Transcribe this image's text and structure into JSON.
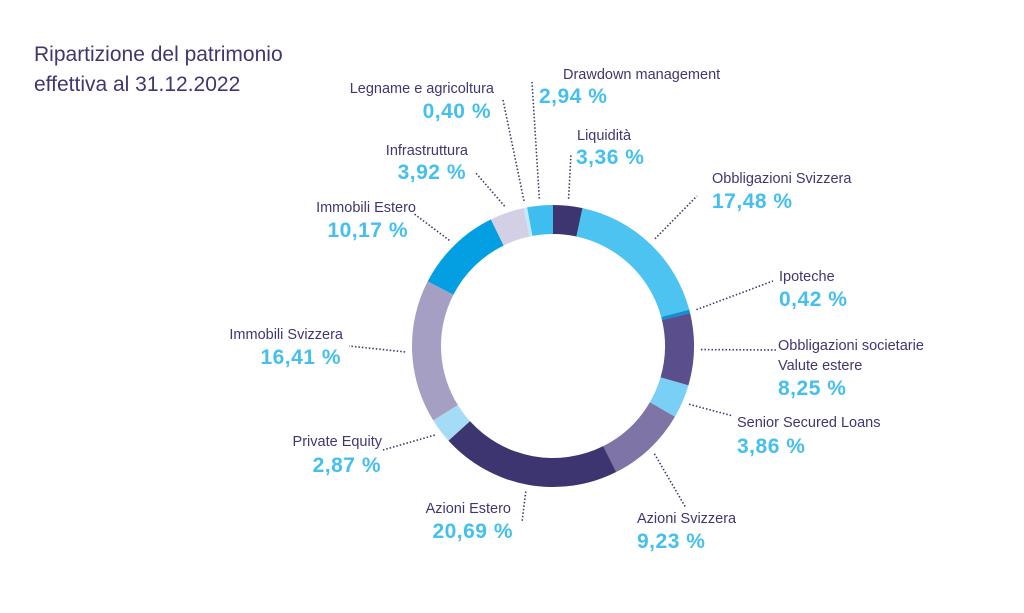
{
  "chart_data": {
    "type": "pie",
    "variant": "donut",
    "title": "Ripartizione del patrimonio effettiva al 31.12.2022",
    "title_lines": [
      "Ripartizione del patrimonio",
      "effettiva al 31.12.2022"
    ],
    "start": "top",
    "direction": "clockwise",
    "slices": [
      {
        "label": "Liquidità",
        "value": 3.36,
        "display": "3,36 %",
        "color": "#3d3570"
      },
      {
        "label": "Obbligazioni Svizzera",
        "value": 17.48,
        "display": "17,48 %",
        "color": "#4cc3f1"
      },
      {
        "label": "Ipoteche",
        "value": 0.42,
        "display": "0,42 %",
        "color": "#0d8fd6"
      },
      {
        "label": "Obbligazioni societarie Valute estere",
        "label_lines": [
          "Obbligazioni societarie",
          "Valute estere"
        ],
        "value": 8.25,
        "display": "8,25 %",
        "color": "#5a4f8c"
      },
      {
        "label": "Senior Secured Loans",
        "value": 3.86,
        "display": "3,86 %",
        "color": "#79cff4"
      },
      {
        "label": "Azioni Svizzera",
        "value": 9.23,
        "display": "9,23 %",
        "color": "#7e74a5"
      },
      {
        "label": "Azioni Estero",
        "value": 20.69,
        "display": "20,69 %",
        "color": "#3d3570"
      },
      {
        "label": "Private Equity",
        "value": 2.87,
        "display": "2,87 %",
        "color": "#a4dcf6"
      },
      {
        "label": "Immobili Svizzera",
        "value": 16.41,
        "display": "16,41 %",
        "color": "#a59fc4"
      },
      {
        "label": "Immobili Estero",
        "value": 10.17,
        "display": "10,17 %",
        "color": "#049fe2"
      },
      {
        "label": "Infrastruttura",
        "value": 3.92,
        "display": "3,92 %",
        "color": "#d3d0e5"
      },
      {
        "label": "Legname e agricoltura",
        "value": 0.4,
        "display": "0,40 %",
        "color": "#c5e9fb"
      },
      {
        "label": "Drawdown management",
        "value": 2.94,
        "display": "2,94 %",
        "color": "#3ebdf0"
      }
    ],
    "colors": {
      "label_text": "#3f3770",
      "value_text": "#45bfee",
      "leader_line": "#3f3770"
    }
  }
}
